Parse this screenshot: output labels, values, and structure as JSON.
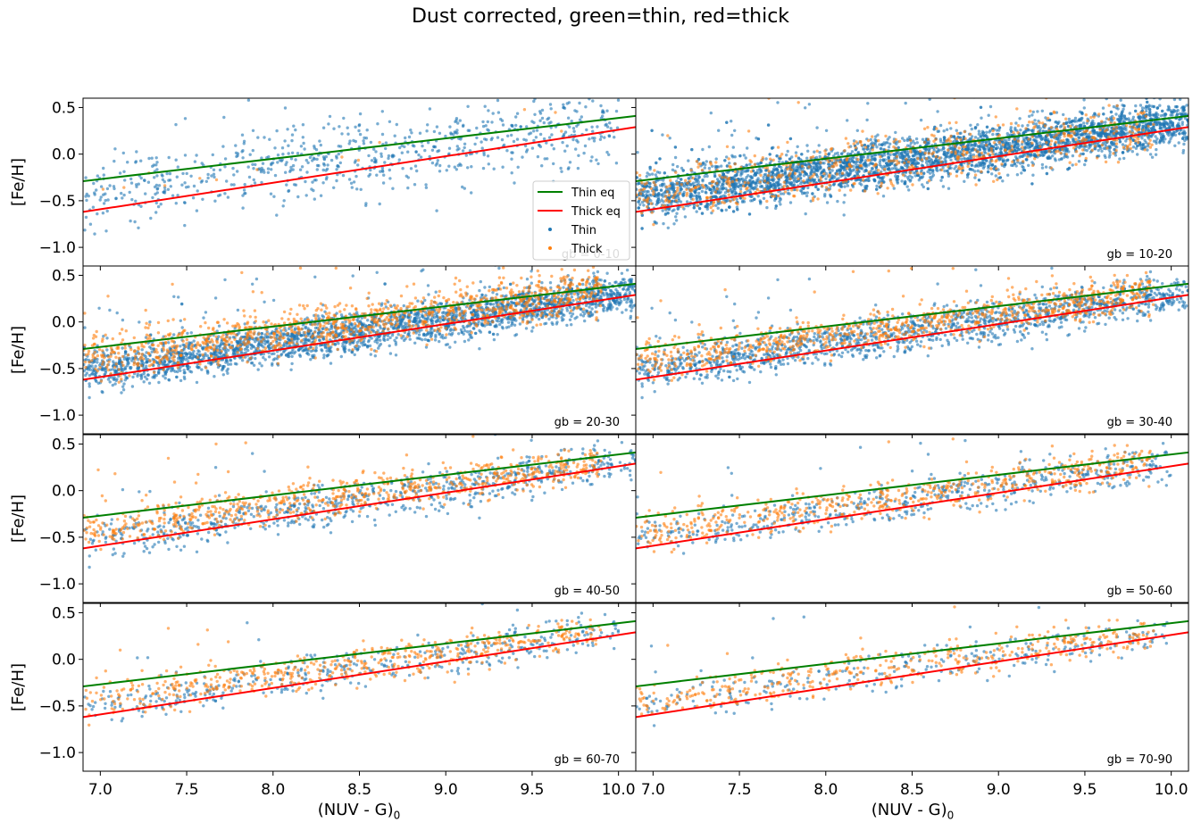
{
  "figure": {
    "title": "Dust corrected, green=thin, red=thick"
  },
  "chart_data": {
    "type": "scatter",
    "layout": "4x2 panels, shared x and y axes",
    "xlabel_main": "(NUV - G)",
    "xlabel_sub": "0",
    "ylabel": "[Fe/H]",
    "xlim": [
      6.9,
      10.1
    ],
    "ylim": [
      -1.2,
      0.6
    ],
    "xticks": [
      7.0,
      7.5,
      8.0,
      8.5,
      9.0,
      9.5,
      10.0
    ],
    "xtick_labels": [
      "7.0",
      "7.5",
      "8.0",
      "8.5",
      "9.0",
      "9.5",
      "10.0"
    ],
    "yticks": [
      0.5,
      0.0,
      -0.5,
      -1.0
    ],
    "ytick_labels": [
      "0.5",
      "0.0",
      "−0.5",
      "−1.0"
    ],
    "grid": false,
    "lines": {
      "thin_eq": {
        "x": [
          6.9,
          10.1
        ],
        "y": [
          -0.29,
          0.41
        ]
      },
      "thick_eq": {
        "x": [
          6.9,
          10.1
        ],
        "y": [
          -0.62,
          0.29
        ]
      }
    },
    "colors": {
      "thin_line": "#008000",
      "thick_line": "#ff0000",
      "thin_points": "#1f77b4",
      "thick_points": "#ff7f0e"
    },
    "legend": {
      "placement": "lower-right of first panel",
      "entries": [
        "Thin eq",
        "Thick eq",
        "Thin",
        "Thick"
      ]
    },
    "panels": [
      {
        "label": "gb = 0-10",
        "n_thin": 750,
        "n_thick": 14,
        "thin_spread": 0.2,
        "thick_spread": 0.15,
        "thin_pos": 0.5,
        "thick_pos": 0.4,
        "thin_xmax": 10.0
      },
      {
        "label": "gb = 10-20",
        "n_thin": 4000,
        "n_thick": 650,
        "thin_spread": 0.13,
        "thick_spread": 0.15,
        "thin_pos": 0.45,
        "thick_pos": 0.5,
        "thin_xmax": 10.1
      },
      {
        "label": "gb = 20-30",
        "n_thin": 2700,
        "n_thick": 1100,
        "thin_spread": 0.11,
        "thick_spread": 0.12,
        "thin_pos": 0.25,
        "thick_pos": 0.7,
        "thin_xmax": 10.1
      },
      {
        "label": "gb = 30-40",
        "n_thin": 1500,
        "n_thick": 850,
        "thin_spread": 0.11,
        "thick_spread": 0.1,
        "thin_pos": 0.25,
        "thick_pos": 0.6,
        "thin_xmax": 10.1
      },
      {
        "label": "gb = 40-50",
        "n_thin": 750,
        "n_thick": 700,
        "thin_spread": 0.11,
        "thick_spread": 0.1,
        "thin_pos": 0.22,
        "thick_pos": 0.55,
        "thin_xmax": 10.1
      },
      {
        "label": "gb = 50-60",
        "n_thin": 550,
        "n_thick": 550,
        "thin_spread": 0.1,
        "thick_spread": 0.1,
        "thin_pos": 0.25,
        "thick_pos": 0.5,
        "thin_xmax": 10.0
      },
      {
        "label": "gb = 60-70",
        "n_thin": 420,
        "n_thick": 520,
        "thin_spread": 0.1,
        "thick_spread": 0.1,
        "thin_pos": 0.3,
        "thick_pos": 0.5,
        "thin_xmax": 10.0
      },
      {
        "label": "gb = 70-90",
        "n_thin": 300,
        "n_thick": 420,
        "thin_spread": 0.1,
        "thick_spread": 0.1,
        "thin_pos": 0.3,
        "thick_pos": 0.45,
        "thin_xmax": 10.0
      }
    ]
  }
}
